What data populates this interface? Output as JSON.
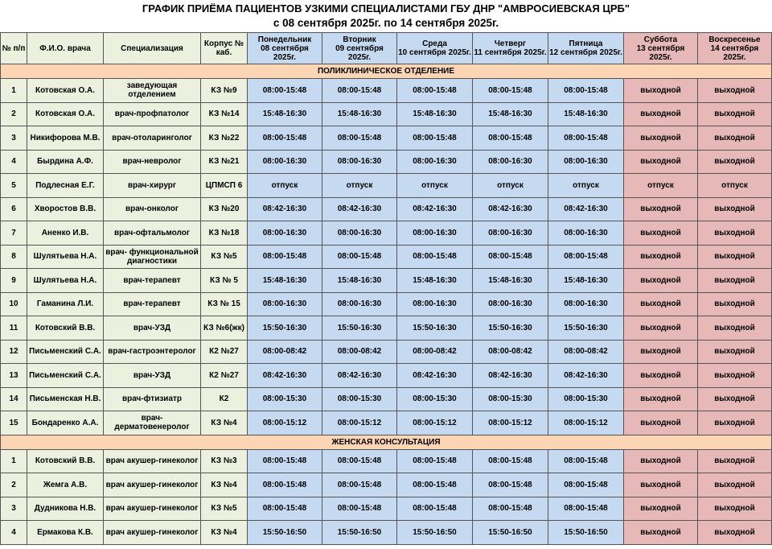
{
  "header": {
    "title": "ГРАФИК ПРИЁМА ПАЦИЕНТОВ УЗКИМИ СПЕЦИАЛИСТАМИ ГБУ  ДНР \"АМВРОСИЕВСКАЯ ЦРБ\"",
    "subtitle": "с 08 сентября 2025г. по 14 сентября 2025г."
  },
  "table": {
    "columns": [
      "№ п/п",
      "Ф.И.О. врача",
      "Специализация",
      "Корпус № каб."
    ],
    "days": [
      {
        "name": "Понедельник",
        "date": "08 сентября 2025г."
      },
      {
        "name": "Вторник",
        "date": "09 сентября 2025г."
      },
      {
        "name": "Среда",
        "date": "10 сентября 2025г."
      },
      {
        "name": "Четверг",
        "date": "11 сентября 2025г."
      },
      {
        "name": "Пятница",
        "date": "12 сентября 2025г."
      },
      {
        "name": "Суббота",
        "date": "13 сентября 2025г."
      },
      {
        "name": "Воскресенье",
        "date": "14 сентября 2025г."
      }
    ],
    "sections": [
      {
        "title": "ПОЛИКЛИНИЧЕСКОЕ ОТДЕЛЕНИЕ",
        "rows": [
          [
            "1",
            "Котовская О.А.",
            "заведующая отделением",
            "КЗ №9",
            "08:00-15:48",
            "08:00-15:48",
            "08:00-15:48",
            "08:00-15:48",
            "08:00-15:48",
            "выходной",
            "выходной"
          ],
          [
            "2",
            "Котовская О.А.",
            "врач-профпатолог",
            "КЗ №14",
            "15:48-16:30",
            "15:48-16:30",
            "15:48-16:30",
            "15:48-16:30",
            "15:48-16:30",
            "выходной",
            "выходной"
          ],
          [
            "3",
            "Никифорова М.В.",
            "врач-отоларинголог",
            "КЗ №22",
            "08:00-15:48",
            "08:00-15:48",
            "08:00-15:48",
            "08:00-15:48",
            "08:00-15:48",
            "выходной",
            "выходной"
          ],
          [
            "4",
            "Бырдина А.Ф.",
            "врач-невролог",
            "КЗ №21",
            "08:00-16:30",
            "08:00-16:30",
            "08:00-16:30",
            "08:00-16:30",
            "08:00-16:30",
            "выходной",
            "выходной"
          ],
          [
            "5",
            "Подлесная Е.Г.",
            "врач-хирург",
            "ЦПМСП 6",
            "отпуск",
            "отпуск",
            "отпуск",
            "отпуск",
            "отпуск",
            "отпуск",
            "отпуск"
          ],
          [
            "6",
            "Хворостов В.В.",
            "врач-онколог",
            "КЗ №20",
            "08:42-16:30",
            "08:42-16:30",
            "08:42-16:30",
            "08:42-16:30",
            "08:42-16:30",
            "выходной",
            "выходной"
          ],
          [
            "7",
            "Аненко И.В.",
            "врач-офтальмолог",
            "КЗ №18",
            "08:00-16:30",
            "08:00-16:30",
            "08:00-16:30",
            "08:00-16:30",
            "08:00-16:30",
            "выходной",
            "выходной"
          ],
          [
            "8",
            "Шулятьева Н.А.",
            "врач- функциональной диагностики",
            "КЗ №5",
            "08:00-15:48",
            "08:00-15:48",
            "08:00-15:48",
            "08:00-15:48",
            "08:00-15:48",
            "выходной",
            "выходной"
          ],
          [
            "9",
            "Шулятьева Н.А.",
            "врач-терапевт",
            "КЗ № 5",
            "15:48-16:30",
            "15:48-16:30",
            "15:48-16:30",
            "15:48-16:30",
            "15:48-16:30",
            "выходной",
            "выходной"
          ],
          [
            "10",
            "Гаманина Л.И.",
            "врач-терапевт",
            "КЗ № 15",
            "08:00-16:30",
            "08:00-16:30",
            "08:00-16:30",
            "08:00-16:30",
            "08:00-16:30",
            "выходной",
            "выходной"
          ],
          [
            "11",
            "Котовский В.В.",
            "врач-УЗД",
            "КЗ №6(жк)",
            "15:50-16:30",
            "15:50-16:30",
            "15:50-16:30",
            "15:50-16:30",
            "15:50-16:30",
            "выходной",
            "выходной"
          ],
          [
            "12",
            "Письменский С.А.",
            "врач-гастроэнтеролог",
            "К2 №27",
            "08:00-08:42",
            "08:00-08:42",
            "08:00-08:42",
            "08:00-08:42",
            "08:00-08:42",
            "выходной",
            "выходной"
          ],
          [
            "13",
            "Письменский С.А.",
            "врач-УЗД",
            "К2 №27",
            "08:42-16:30",
            "08:42-16:30",
            "08:42-16:30",
            "08:42-16:30",
            "08:42-16:30",
            "выходной",
            "выходной"
          ],
          [
            "14",
            "Письменская Н.В.",
            "врач-фтизиатр",
            "К2",
            "08:00-15:30",
            "08:00-15:30",
            "08:00-15:30",
            "08:00-15:30",
            "08:00-15:30",
            "выходной",
            "выходной"
          ],
          [
            "15",
            "Бондаренко А.А.",
            "врач-дерматовенеролог",
            "КЗ №4",
            "08:00-15:12",
            "08:00-15:12",
            "08:00-15:12",
            "08:00-15:12",
            "08:00-15:12",
            "выходной",
            "выходной"
          ]
        ]
      },
      {
        "title": "ЖЕНСКАЯ КОНСУЛЬТАЦИЯ",
        "rows": [
          [
            "1",
            "Котовский В.В.",
            "врач акушер-гинеколог",
            "КЗ №3",
            "08:00-15:48",
            "08:00-15:48",
            "08:00-15:48",
            "08:00-15:48",
            "08:00-15:48",
            "выходной",
            "выходной"
          ],
          [
            "2",
            "Жемга А.В.",
            "врач акушер-гинеколог",
            "КЗ №4",
            "08:00-15:48",
            "08:00-15:48",
            "08:00-15:48",
            "08:00-15:48",
            "08:00-15:48",
            "выходной",
            "выходной"
          ],
          [
            "3",
            "Дудникова Н.В.",
            "врач акушер-гинеколог",
            "КЗ №5",
            "08:00-15:48",
            "08:00-15:48",
            "08:00-15:48",
            "08:00-15:48",
            "08:00-15:48",
            "выходной",
            "выходной"
          ],
          [
            "4",
            "Ермакова К.В.",
            "врач акушер-гинеколог",
            "КЗ №4",
            "15:50-16:50",
            "15:50-16:50",
            "15:50-16:50",
            "15:50-16:50",
            "15:50-16:50",
            "выходной",
            "выходной"
          ]
        ]
      }
    ]
  }
}
